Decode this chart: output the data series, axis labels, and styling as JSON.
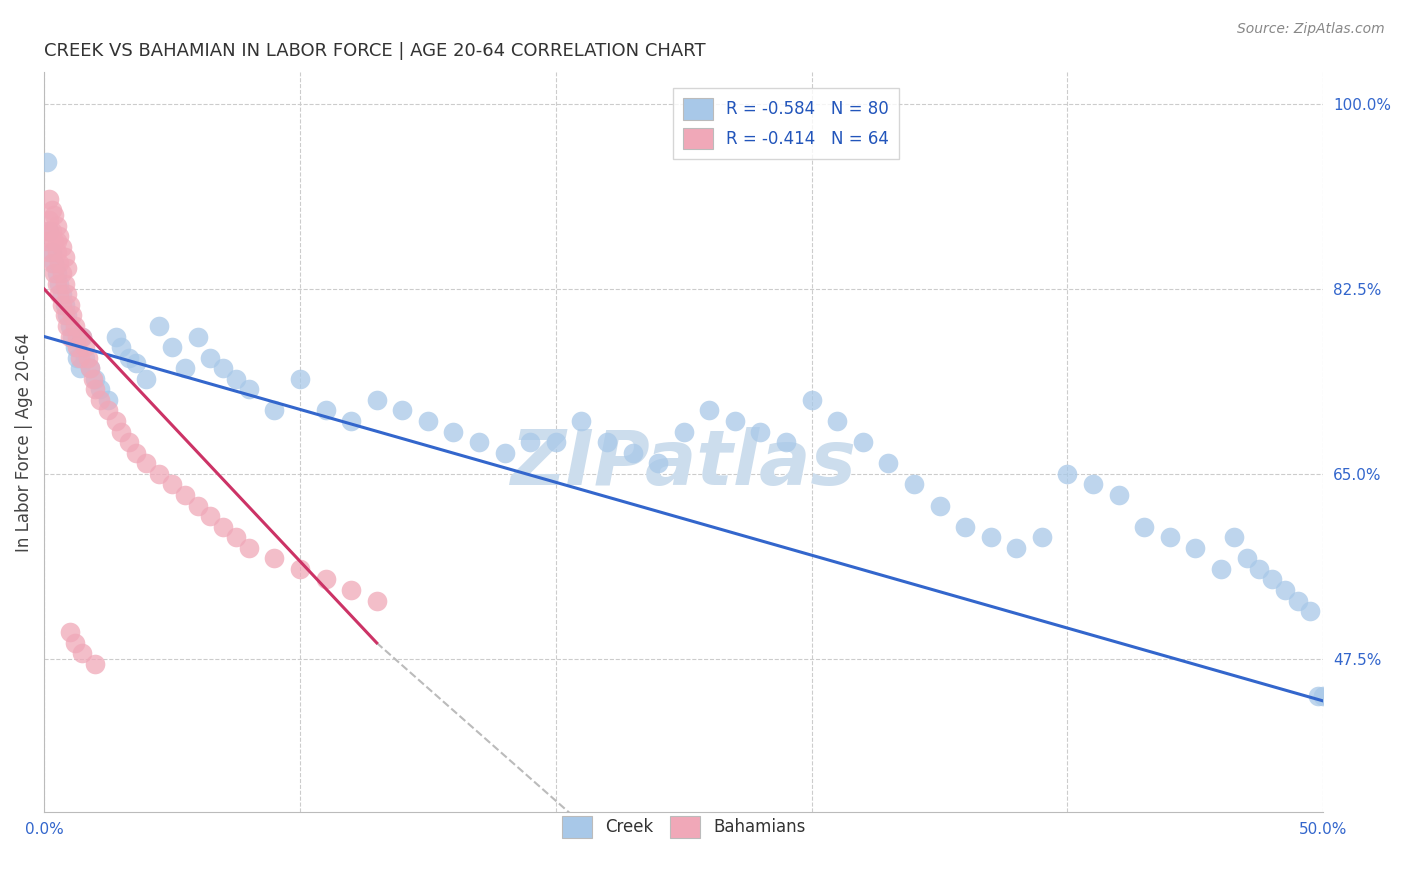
{
  "title": "CREEK VS BAHAMIAN IN LABOR FORCE | AGE 20-64 CORRELATION CHART",
  "source": "Source: ZipAtlas.com",
  "ylabel": "In Labor Force | Age 20-64",
  "xlim": [
    0.0,
    0.5
  ],
  "ylim": [
    0.33,
    1.03
  ],
  "xtick_positions": [
    0.0,
    0.1,
    0.2,
    0.3,
    0.4,
    0.5
  ],
  "xticklabels": [
    "0.0%",
    "",
    "",
    "",
    "",
    "50.0%"
  ],
  "yticks_right": [
    0.475,
    0.65,
    0.825,
    1.0
  ],
  "ytick_right_labels": [
    "47.5%",
    "65.0%",
    "82.5%",
    "100.0%"
  ],
  "legend_blue_label": "R = -0.584   N = 80",
  "legend_pink_label": "R = -0.414   N = 64",
  "creek_color": "#a8c8e8",
  "bahamas_color": "#f0a8b8",
  "blue_line_color": "#3366cc",
  "pink_line_color": "#cc3366",
  "dashed_color": "#bbbbbb",
  "watermark": "ZIPatlas",
  "watermark_color": "#ccdded",
  "creek_scatter_x": [
    0.001,
    0.002,
    0.003,
    0.004,
    0.005,
    0.006,
    0.007,
    0.008,
    0.009,
    0.01,
    0.011,
    0.012,
    0.013,
    0.014,
    0.015,
    0.016,
    0.018,
    0.02,
    0.022,
    0.025,
    0.028,
    0.03,
    0.033,
    0.036,
    0.04,
    0.045,
    0.05,
    0.055,
    0.06,
    0.065,
    0.07,
    0.075,
    0.08,
    0.09,
    0.1,
    0.11,
    0.12,
    0.13,
    0.14,
    0.15,
    0.16,
    0.17,
    0.18,
    0.19,
    0.2,
    0.21,
    0.22,
    0.23,
    0.24,
    0.25,
    0.26,
    0.27,
    0.28,
    0.29,
    0.3,
    0.31,
    0.32,
    0.33,
    0.34,
    0.35,
    0.36,
    0.37,
    0.38,
    0.39,
    0.4,
    0.41,
    0.42,
    0.43,
    0.44,
    0.45,
    0.46,
    0.465,
    0.47,
    0.475,
    0.48,
    0.485,
    0.49,
    0.495,
    0.498,
    0.5
  ],
  "creek_scatter_y": [
    0.945,
    0.88,
    0.86,
    0.85,
    0.84,
    0.83,
    0.82,
    0.81,
    0.8,
    0.79,
    0.78,
    0.77,
    0.76,
    0.75,
    0.78,
    0.76,
    0.75,
    0.74,
    0.73,
    0.72,
    0.78,
    0.77,
    0.76,
    0.755,
    0.74,
    0.79,
    0.77,
    0.75,
    0.78,
    0.76,
    0.75,
    0.74,
    0.73,
    0.71,
    0.74,
    0.71,
    0.7,
    0.72,
    0.71,
    0.7,
    0.69,
    0.68,
    0.67,
    0.68,
    0.68,
    0.7,
    0.68,
    0.67,
    0.66,
    0.69,
    0.71,
    0.7,
    0.69,
    0.68,
    0.72,
    0.7,
    0.68,
    0.66,
    0.64,
    0.62,
    0.6,
    0.59,
    0.58,
    0.59,
    0.65,
    0.64,
    0.63,
    0.6,
    0.59,
    0.58,
    0.56,
    0.59,
    0.57,
    0.56,
    0.55,
    0.54,
    0.53,
    0.52,
    0.44,
    0.44
  ],
  "bahamas_scatter_x": [
    0.001,
    0.001,
    0.002,
    0.002,
    0.003,
    0.003,
    0.004,
    0.004,
    0.005,
    0.005,
    0.005,
    0.006,
    0.006,
    0.007,
    0.007,
    0.008,
    0.008,
    0.009,
    0.009,
    0.01,
    0.01,
    0.011,
    0.012,
    0.013,
    0.013,
    0.014,
    0.015,
    0.016,
    0.017,
    0.018,
    0.019,
    0.02,
    0.022,
    0.025,
    0.028,
    0.03,
    0.033,
    0.036,
    0.04,
    0.045,
    0.05,
    0.055,
    0.06,
    0.065,
    0.07,
    0.075,
    0.08,
    0.09,
    0.1,
    0.11,
    0.12,
    0.13,
    0.002,
    0.003,
    0.004,
    0.005,
    0.006,
    0.007,
    0.008,
    0.009,
    0.01,
    0.012,
    0.015,
    0.02
  ],
  "bahamas_scatter_y": [
    0.88,
    0.87,
    0.89,
    0.86,
    0.88,
    0.85,
    0.87,
    0.84,
    0.87,
    0.86,
    0.83,
    0.85,
    0.82,
    0.84,
    0.81,
    0.83,
    0.8,
    0.82,
    0.79,
    0.81,
    0.78,
    0.8,
    0.79,
    0.78,
    0.77,
    0.76,
    0.78,
    0.77,
    0.76,
    0.75,
    0.74,
    0.73,
    0.72,
    0.71,
    0.7,
    0.69,
    0.68,
    0.67,
    0.66,
    0.65,
    0.64,
    0.63,
    0.62,
    0.61,
    0.6,
    0.59,
    0.58,
    0.57,
    0.56,
    0.55,
    0.54,
    0.53,
    0.91,
    0.9,
    0.895,
    0.885,
    0.875,
    0.865,
    0.855,
    0.845,
    0.5,
    0.49,
    0.48,
    0.47
  ],
  "blue_line_x": [
    0.0,
    0.5
  ],
  "blue_line_y": [
    0.78,
    0.435
  ],
  "pink_line_x": [
    0.0,
    0.13
  ],
  "pink_line_y": [
    0.825,
    0.49
  ],
  "dashed_line_x": [
    0.13,
    0.5
  ],
  "dashed_line_y": [
    0.49,
    -0.3
  ],
  "legend_fontsize": 12,
  "title_fontsize": 13,
  "axis_label_fontsize": 12,
  "tick_fontsize": 11
}
